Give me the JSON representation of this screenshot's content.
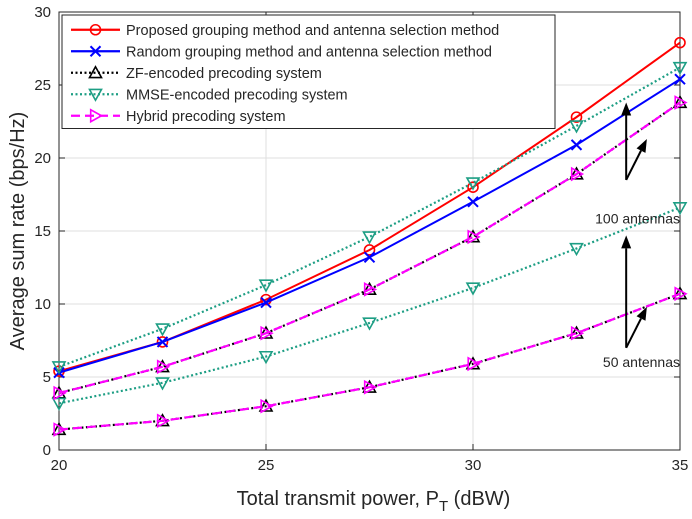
{
  "chart_data": {
    "type": "line",
    "title": "",
    "xlabel": "Total transmit power, P",
    "xlabel_sub": "T",
    "xlabel_unit": " (dBW)",
    "ylabel": "Average sum rate (bps/Hz)",
    "xlim": [
      20,
      35
    ],
    "ylim": [
      0,
      30
    ],
    "xticks": [
      "20",
      "25",
      "30",
      "35"
    ],
    "yticks": [
      "0",
      "5",
      "10",
      "15",
      "20",
      "25",
      "30"
    ],
    "grid": true,
    "legend_position": "top-left",
    "x": [
      20,
      22.5,
      25,
      27.5,
      30,
      32.5,
      35
    ],
    "series": [
      {
        "name": "Proposed grouping method and antenna selection method",
        "color": "#ff0000",
        "dash": "solid",
        "marker": "circle",
        "values": [
          5.4,
          7.4,
          10.3,
          13.7,
          18.0,
          22.8,
          27.9
        ]
      },
      {
        "name": "Random grouping method and antenna selection method",
        "color": "#0000ff",
        "dash": "solid",
        "marker": "x",
        "values": [
          5.3,
          7.4,
          10.1,
          13.2,
          17.0,
          20.9,
          25.4
        ]
      },
      {
        "name": "ZF-encoded precoding system",
        "color": "#000000",
        "dash": "dotted",
        "marker": "triangle-up",
        "values": [
          3.9,
          5.7,
          8.0,
          11.0,
          14.6,
          18.9,
          23.8
        ]
      },
      {
        "name": "ZF-encoded precoding system (50 antennas)",
        "legend": false,
        "color": "#000000",
        "dash": "dotted",
        "marker": "triangle-up",
        "values": [
          1.4,
          2.0,
          3.0,
          4.3,
          5.9,
          8.0,
          10.7
        ]
      },
      {
        "name": "MMSE-encoded precoding system",
        "color": "#1d9e84",
        "dash": "dotted",
        "marker": "triangle-down",
        "values": [
          5.7,
          8.3,
          11.3,
          14.6,
          18.3,
          22.2,
          26.2
        ]
      },
      {
        "name": "MMSE-encoded precoding system (50 antennas)",
        "legend": false,
        "color": "#1d9e84",
        "dash": "dotted",
        "marker": "triangle-down",
        "values": [
          3.2,
          4.6,
          6.4,
          8.7,
          11.1,
          13.8,
          16.6
        ]
      },
      {
        "name": "Hybrid precoding system",
        "color": "#ff00ff",
        "dash": "dashed",
        "marker": "triangle-right",
        "values": [
          3.9,
          5.7,
          8.0,
          11.0,
          14.6,
          18.9,
          23.8
        ]
      },
      {
        "name": "Hybrid precoding system (50 antennas)",
        "legend": false,
        "color": "#ff00ff",
        "dash": "dashed",
        "marker": "triangle-right",
        "values": [
          1.4,
          2.0,
          3.0,
          4.3,
          5.9,
          8.0,
          10.7
        ]
      }
    ],
    "annotations": [
      {
        "text": "100 antennas",
        "x": 35.0,
        "y": 15.5
      },
      {
        "text": "50 antennas",
        "x": 35.0,
        "y": 5.7
      }
    ],
    "arrows": [
      {
        "from": [
          33.7,
          18.5
        ],
        "to": [
          33.7,
          23.8
        ]
      },
      {
        "from": [
          33.7,
          18.5
        ],
        "to": [
          34.2,
          21.3
        ]
      },
      {
        "from": [
          33.7,
          7.0
        ],
        "to": [
          33.7,
          14.7
        ]
      },
      {
        "from": [
          33.7,
          7.0
        ],
        "to": [
          34.2,
          9.8
        ]
      }
    ]
  }
}
